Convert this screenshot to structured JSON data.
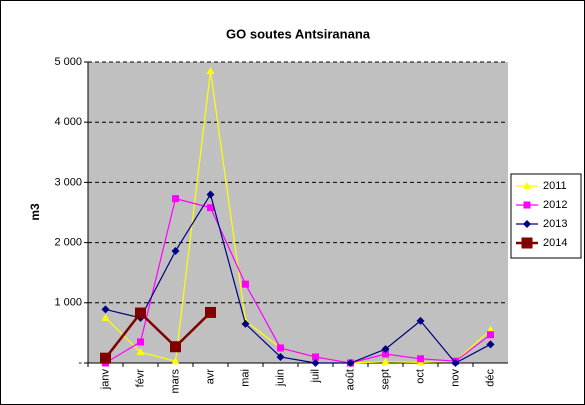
{
  "chart_data": {
    "type": "line",
    "title": "GO soutes Antsiranana",
    "y_label": "m3",
    "categories": [
      "janv",
      "févr",
      "mars",
      "avr",
      "mai",
      "juin",
      "juil",
      "août",
      "sept",
      "oct",
      "nov",
      "déc"
    ],
    "series": [
      {
        "name": "2011",
        "color": "#ffff00",
        "marker": "triangle",
        "values": [
          750,
          180,
          30,
          4850,
          700,
          250,
          100,
          0,
          20,
          10,
          30,
          550
        ]
      },
      {
        "name": "2012",
        "color": "#ff00ff",
        "marker": "square",
        "values": [
          0,
          350,
          2730,
          2580,
          1310,
          250,
          100,
          0,
          150,
          70,
          30,
          470
        ]
      },
      {
        "name": "2013",
        "color": "#000080",
        "marker": "diamond",
        "values": [
          890,
          750,
          1860,
          2800,
          650,
          100,
          0,
          0,
          230,
          700,
          0,
          310
        ]
      },
      {
        "name": "2014",
        "color": "#800000",
        "marker": "big-square",
        "values": [
          80,
          830,
          270,
          840,
          null,
          null,
          null,
          null,
          null,
          null,
          null,
          null
        ]
      }
    ],
    "ylim": [
      0,
      5000
    ],
    "yticks": [
      {
        "value": 0,
        "label": "-"
      },
      {
        "value": 1000,
        "label": "1 000"
      },
      {
        "value": 2000,
        "label": "2 000"
      },
      {
        "value": 3000,
        "label": "3 000"
      },
      {
        "value": 4000,
        "label": "4 000"
      },
      {
        "value": 5000,
        "label": "5 000"
      }
    ],
    "grid": true,
    "plot_background": "#c0c0c0",
    "legend": "right"
  }
}
